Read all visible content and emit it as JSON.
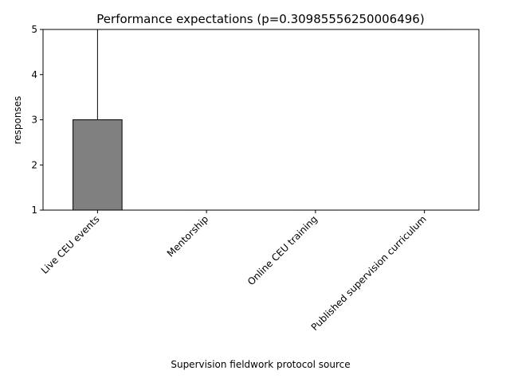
{
  "chart_data": {
    "type": "box",
    "title": "Performance expectations (p=0.30985556250006496)",
    "xlabel": "Supervision fieldwork protocol source",
    "ylabel": "responses",
    "ylim": [
      1,
      5
    ],
    "yticks": [
      "1",
      "2",
      "3",
      "4",
      "5"
    ],
    "grid": false,
    "categories": [
      "Live CEU events",
      "Mentorship",
      "Online CEU training",
      "Published supervision curriculum"
    ],
    "boxes": [
      {
        "min": 1,
        "q1": 1,
        "median": 1,
        "q3": 3,
        "max": 5
      },
      {
        "min": 1,
        "q1": 1,
        "median": 1,
        "q3": 1,
        "max": 1
      },
      {
        "min": 1,
        "q1": 1,
        "median": 1,
        "q3": 1,
        "max": 1
      },
      {
        "min": 5,
        "q1": 5,
        "median": 5,
        "q3": 5,
        "max": 5
      }
    ],
    "box_color": "#808080",
    "median_color": "#808080",
    "edge_color": "#000000"
  }
}
